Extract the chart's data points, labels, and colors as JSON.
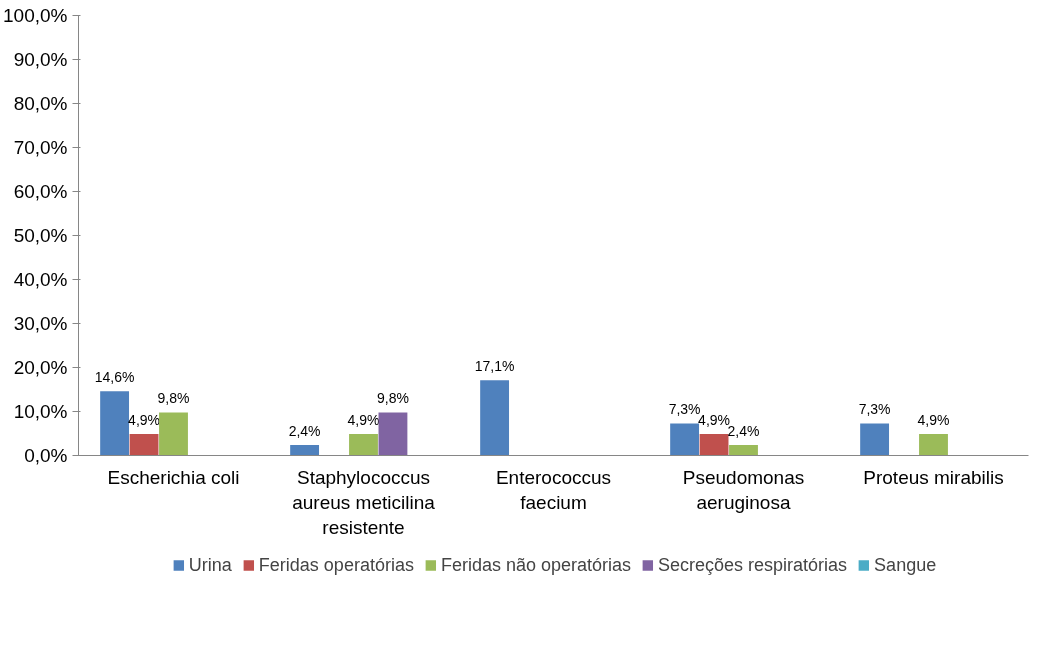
{
  "chart_data": {
    "type": "bar",
    "categories": [
      "Escherichia coli",
      "Staphylococcus aureus meticilina resistente",
      "Enterococcus faecium",
      "Pseudomonas aeruginosa",
      "Proteus mirabilis"
    ],
    "series": [
      {
        "name": "Urina",
        "color": "#4f81bd",
        "values": [
          14.6,
          2.4,
          17.1,
          7.3,
          7.3
        ],
        "value_labels": [
          "14,6%",
          "2,4%",
          "17,1%",
          "7,3%",
          "7,3%"
        ]
      },
      {
        "name": "Feridas operatórias",
        "color": "#c0504d",
        "values": [
          4.9,
          null,
          null,
          4.9,
          null
        ],
        "value_labels": [
          "4,9%",
          null,
          null,
          "4,9%",
          null
        ]
      },
      {
        "name": "Feridas não operatórias",
        "color": "#9bbb59",
        "values": [
          9.8,
          4.9,
          null,
          2.4,
          4.9
        ],
        "value_labels": [
          "9,8%",
          "4,9%",
          null,
          "2,4%",
          "4,9%"
        ]
      },
      {
        "name": "Secreções respiratórias",
        "color": "#8064a2",
        "values": [
          null,
          9.8,
          null,
          null,
          null
        ],
        "value_labels": [
          null,
          "9,8%",
          null,
          null,
          null
        ]
      },
      {
        "name": "Sangue",
        "color": "#4bacc6",
        "values": [
          null,
          null,
          null,
          null,
          null
        ]
      }
    ],
    "ylim": [
      0,
      100
    ],
    "yticks": [
      {
        "value": 0,
        "label": "0,0%"
      },
      {
        "value": 10,
        "label": "10,0%"
      },
      {
        "value": 20,
        "label": "20,0%"
      },
      {
        "value": 30,
        "label": "30,0%"
      },
      {
        "value": 40,
        "label": "40,0%"
      },
      {
        "value": 50,
        "label": "50,0%"
      },
      {
        "value": 60,
        "label": "60,0%"
      },
      {
        "value": 70,
        "label": "70,0%"
      },
      {
        "value": 80,
        "label": "80,0%"
      },
      {
        "value": 90,
        "label": "90,0%"
      },
      {
        "value": 100,
        "label": "100,0%"
      }
    ],
    "grid": false,
    "legend": "bottom"
  }
}
